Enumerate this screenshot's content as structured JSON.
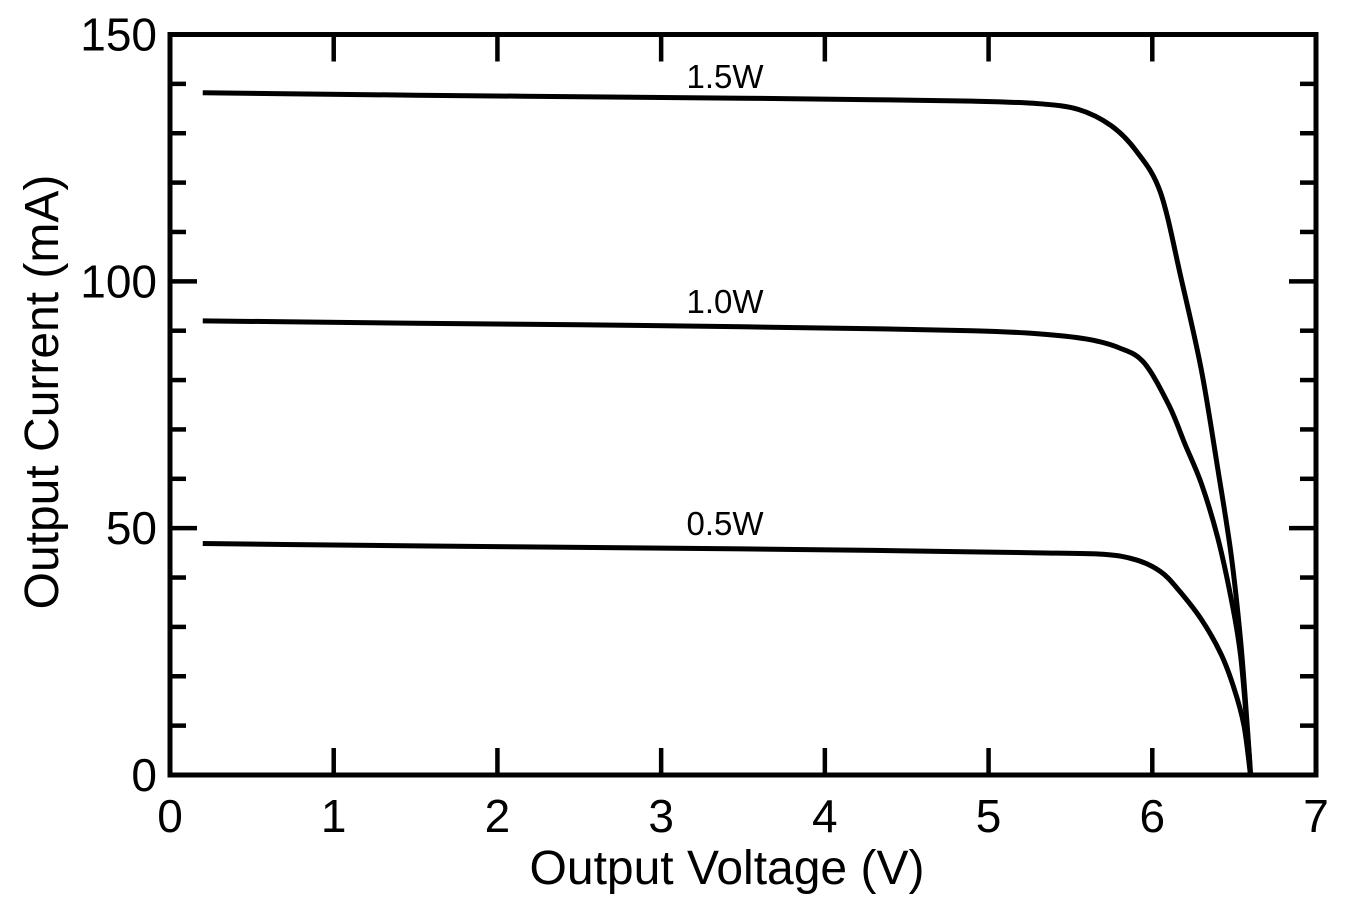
{
  "page": {
    "background": "#ffffff",
    "ink": "#000000"
  },
  "chart_data": {
    "type": "line",
    "title": "",
    "xlabel": "Output Voltage (V)",
    "ylabel": "Output Current (mA)",
    "xlim": [
      0,
      7
    ],
    "ylim": [
      0,
      150
    ],
    "x_major_ticks": [
      0,
      1,
      2,
      3,
      4,
      5,
      6,
      7
    ],
    "x_tick_labels": [
      "0",
      "1",
      "2",
      "3",
      "4",
      "5",
      "6",
      "7"
    ],
    "y_major_ticks": [
      0,
      50,
      100,
      150
    ],
    "y_tick_labels": [
      "0",
      "50",
      "100",
      "150"
    ],
    "y_minor_tick_step": 10,
    "grid": false,
    "legend_position": "inline curve labels above each plateau",
    "frame": "closed box with ticks on all four sides pointing inward",
    "line_color": "#000000",
    "series": [
      {
        "name": "1.5W",
        "label": "1.5W",
        "label_pos": [
          3.39,
          139.2
        ],
        "points": [
          [
            0.2,
            138.2
          ],
          [
            0.7,
            138.0
          ],
          [
            1.5,
            137.7
          ],
          [
            2.5,
            137.4
          ],
          [
            3.5,
            137.1
          ],
          [
            4.3,
            136.8
          ],
          [
            4.9,
            136.5
          ],
          [
            5.3,
            136.0
          ],
          [
            5.55,
            134.8
          ],
          [
            5.75,
            131.5
          ],
          [
            5.9,
            126.5
          ],
          [
            6.05,
            118
          ],
          [
            6.18,
            100
          ],
          [
            6.3,
            82
          ],
          [
            6.4,
            62
          ],
          [
            6.48,
            45
          ],
          [
            6.54,
            27
          ],
          [
            6.58,
            10
          ],
          [
            6.6,
            0
          ]
        ]
      },
      {
        "name": "1.0W",
        "label": "1.0W",
        "label_pos": [
          3.39,
          93.6
        ],
        "points": [
          [
            0.2,
            92.0
          ],
          [
            0.7,
            91.8
          ],
          [
            1.5,
            91.5
          ],
          [
            2.5,
            91.2
          ],
          [
            3.5,
            90.8
          ],
          [
            4.3,
            90.4
          ],
          [
            4.9,
            90.0
          ],
          [
            5.3,
            89.4
          ],
          [
            5.6,
            88.3
          ],
          [
            5.8,
            86.5
          ],
          [
            5.95,
            83.5
          ],
          [
            6.1,
            75
          ],
          [
            6.2,
            67
          ],
          [
            6.3,
            59
          ],
          [
            6.4,
            48
          ],
          [
            6.48,
            36
          ],
          [
            6.54,
            24
          ],
          [
            6.59,
            5
          ],
          [
            6.6,
            0
          ]
        ]
      },
      {
        "name": "0.5W",
        "label": "0.5W",
        "label_pos": [
          3.39,
          48.6
        ],
        "points": [
          [
            0.2,
            46.9
          ],
          [
            0.7,
            46.7
          ],
          [
            1.5,
            46.4
          ],
          [
            2.5,
            46.1
          ],
          [
            3.5,
            45.8
          ],
          [
            4.3,
            45.5
          ],
          [
            4.9,
            45.2
          ],
          [
            5.3,
            45.0
          ],
          [
            5.7,
            44.7
          ],
          [
            5.9,
            43.6
          ],
          [
            6.05,
            41.2
          ],
          [
            6.16,
            37.5
          ],
          [
            6.3,
            31.5
          ],
          [
            6.42,
            24.5
          ],
          [
            6.5,
            17.5
          ],
          [
            6.56,
            10
          ],
          [
            6.6,
            0
          ]
        ]
      }
    ]
  }
}
